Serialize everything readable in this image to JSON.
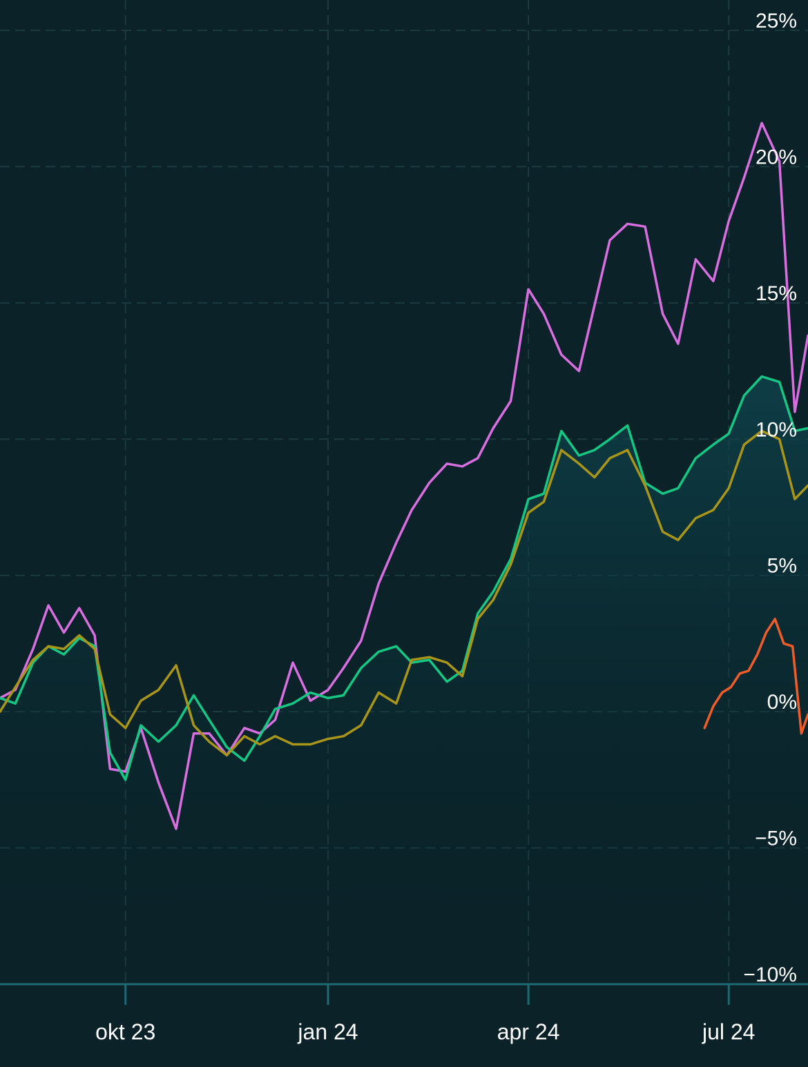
{
  "chart_data": {
    "type": "line",
    "title": "",
    "xlabel": "",
    "ylabel": "",
    "ylim": [
      -10,
      25
    ],
    "y_ticks": [
      "25%",
      "20%",
      "15%",
      "10%",
      "5%",
      "0%",
      "−5%",
      "−10%"
    ],
    "y_tick_values": [
      25,
      20,
      15,
      10,
      5,
      0,
      -5,
      -10
    ],
    "x_ticks": [
      "okt 23",
      "jan 24",
      "apr 24",
      "jul 24"
    ],
    "x_range": [
      "2023-08-05",
      "2024-08-06"
    ],
    "x_tick_dates": [
      "2023-10-01",
      "2024-01-01",
      "2024-04-01",
      "2024-07-01"
    ],
    "grid": true,
    "area_fill_series": "green",
    "series": [
      {
        "key": "purple",
        "color": "#d86ee0",
        "x": [
          "2023-08-05",
          "2023-08-12",
          "2023-08-20",
          "2023-08-27",
          "2023-09-03",
          "2023-09-10",
          "2023-09-17",
          "2023-09-24",
          "2023-10-01",
          "2023-10-08",
          "2023-10-16",
          "2023-10-24",
          "2023-11-01",
          "2023-11-08",
          "2023-11-16",
          "2023-11-24",
          "2023-12-01",
          "2023-12-08",
          "2023-12-16",
          "2023-12-24",
          "2024-01-01",
          "2024-01-08",
          "2024-01-16",
          "2024-01-24",
          "2024-02-01",
          "2024-02-08",
          "2024-02-16",
          "2024-02-24",
          "2024-03-02",
          "2024-03-09",
          "2024-03-16",
          "2024-03-24",
          "2024-04-01",
          "2024-04-08",
          "2024-04-16",
          "2024-04-24",
          "2024-05-01",
          "2024-05-08",
          "2024-05-16",
          "2024-05-24",
          "2024-06-01",
          "2024-06-08",
          "2024-06-16",
          "2024-06-24",
          "2024-07-01",
          "2024-07-08",
          "2024-07-16",
          "2024-07-24",
          "2024-07-31",
          "2024-08-06"
        ],
        "values": [
          0.5,
          0.8,
          2.3,
          3.9,
          2.9,
          3.8,
          2.8,
          -2.1,
          -2.2,
          -0.6,
          -2.6,
          -4.3,
          -0.8,
          -0.8,
          -1.6,
          -0.6,
          -0.8,
          -0.3,
          1.8,
          0.4,
          0.8,
          1.6,
          2.6,
          4.7,
          6.2,
          7.4,
          8.4,
          9.1,
          9.0,
          9.3,
          10.4,
          11.4,
          15.5,
          14.6,
          13.1,
          12.5,
          14.9,
          17.3,
          17.9,
          17.8,
          14.6,
          13.5,
          16.6,
          15.8,
          18.0,
          19.6,
          21.6,
          20.2,
          11.0,
          13.8
        ]
      },
      {
        "key": "green",
        "color": "#16c784",
        "x": [
          "2023-08-05",
          "2023-08-12",
          "2023-08-20",
          "2023-08-27",
          "2023-09-03",
          "2023-09-10",
          "2023-09-17",
          "2023-09-24",
          "2023-10-01",
          "2023-10-08",
          "2023-10-16",
          "2023-10-24",
          "2023-11-01",
          "2023-11-08",
          "2023-11-16",
          "2023-11-24",
          "2023-12-01",
          "2023-12-08",
          "2023-12-16",
          "2023-12-24",
          "2024-01-01",
          "2024-01-08",
          "2024-01-16",
          "2024-01-24",
          "2024-02-01",
          "2024-02-08",
          "2024-02-16",
          "2024-02-24",
          "2024-03-02",
          "2024-03-09",
          "2024-03-16",
          "2024-03-24",
          "2024-04-01",
          "2024-04-08",
          "2024-04-16",
          "2024-04-24",
          "2024-05-01",
          "2024-05-08",
          "2024-05-16",
          "2024-05-24",
          "2024-06-01",
          "2024-06-08",
          "2024-06-16",
          "2024-06-24",
          "2024-07-01",
          "2024-07-08",
          "2024-07-16",
          "2024-07-24",
          "2024-07-31",
          "2024-08-06"
        ],
        "values": [
          0.5,
          0.3,
          1.8,
          2.4,
          2.1,
          2.7,
          2.4,
          -1.5,
          -2.5,
          -0.5,
          -1.1,
          -0.5,
          0.6,
          -0.3,
          -1.3,
          -1.8,
          -0.9,
          0.1,
          0.3,
          0.7,
          0.5,
          0.6,
          1.6,
          2.2,
          2.4,
          1.8,
          1.9,
          1.1,
          1.5,
          3.6,
          4.4,
          5.6,
          7.8,
          8.0,
          10.3,
          9.4,
          9.6,
          10.0,
          10.5,
          8.4,
          8.0,
          8.2,
          9.3,
          9.8,
          10.2,
          11.6,
          12.3,
          12.1,
          10.3,
          10.4
        ]
      },
      {
        "key": "olive",
        "color": "#a8951a",
        "x": [
          "2023-08-05",
          "2023-08-12",
          "2023-08-20",
          "2023-08-27",
          "2023-09-03",
          "2023-09-10",
          "2023-09-17",
          "2023-09-24",
          "2023-10-01",
          "2023-10-08",
          "2023-10-16",
          "2023-10-24",
          "2023-11-01",
          "2023-11-08",
          "2023-11-16",
          "2023-11-24",
          "2023-12-01",
          "2023-12-08",
          "2023-12-16",
          "2023-12-24",
          "2024-01-01",
          "2024-01-08",
          "2024-01-16",
          "2024-01-24",
          "2024-02-01",
          "2024-02-08",
          "2024-02-16",
          "2024-02-24",
          "2024-03-02",
          "2024-03-09",
          "2024-03-16",
          "2024-03-24",
          "2024-04-01",
          "2024-04-08",
          "2024-04-16",
          "2024-04-24",
          "2024-05-01",
          "2024-05-08",
          "2024-05-16",
          "2024-05-24",
          "2024-06-01",
          "2024-06-08",
          "2024-06-16",
          "2024-06-24",
          "2024-07-01",
          "2024-07-08",
          "2024-07-16",
          "2024-07-24",
          "2024-07-31",
          "2024-08-06"
        ],
        "values": [
          0.0,
          0.9,
          1.9,
          2.4,
          2.3,
          2.8,
          2.3,
          -0.1,
          -0.6,
          0.4,
          0.8,
          1.7,
          -0.5,
          -1.1,
          -1.6,
          -0.9,
          -1.2,
          -0.9,
          -1.2,
          -1.2,
          -1.0,
          -0.9,
          -0.5,
          0.7,
          0.3,
          1.9,
          2.0,
          1.8,
          1.3,
          3.4,
          4.1,
          5.4,
          7.3,
          7.7,
          9.6,
          9.1,
          8.6,
          9.3,
          9.6,
          8.3,
          6.6,
          6.3,
          7.1,
          7.4,
          8.2,
          9.8,
          10.3,
          10.0,
          7.8,
          8.3
        ]
      },
      {
        "key": "orange",
        "color": "#ef5c28",
        "x": [
          "2024-06-20",
          "2024-06-24",
          "2024-06-28",
          "2024-07-02",
          "2024-07-06",
          "2024-07-10",
          "2024-07-14",
          "2024-07-18",
          "2024-07-22",
          "2024-07-26",
          "2024-07-30",
          "2024-08-03",
          "2024-08-06"
        ],
        "values": [
          -0.6,
          0.2,
          0.7,
          0.9,
          1.4,
          1.5,
          2.1,
          2.9,
          3.4,
          2.5,
          2.4,
          -0.8,
          -0.1
        ]
      }
    ]
  }
}
